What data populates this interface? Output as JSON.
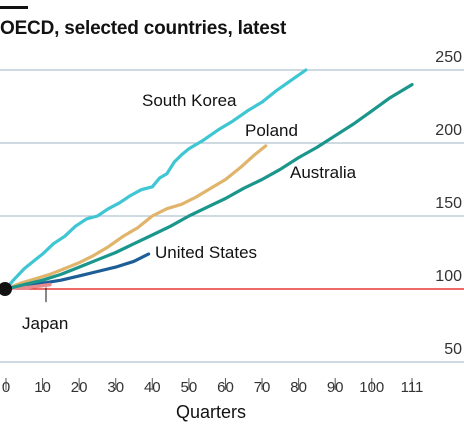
{
  "subtitle": "OECD, selected countries, latest",
  "chart_data": {
    "type": "line",
    "subtitle": "OECD, selected countries, latest",
    "xlabel": "Quarters",
    "ylabel": "",
    "xlim": [
      0,
      113
    ],
    "ylim": [
      45,
      260
    ],
    "x_ticks": [
      0,
      10,
      20,
      30,
      40,
      50,
      60,
      70,
      80,
      90,
      100,
      111
    ],
    "y_ticks": [
      50,
      100,
      150,
      200,
      250
    ],
    "baseline": 100,
    "grid": true,
    "colors": {
      "South Korea": "#3ec6d3",
      "Poland": "#e0b56b",
      "Australia": "#1a968c",
      "United States": "#1d5e96",
      "Japan": "#e88a8f",
      "baseline": "#e3120b",
      "grid": "#9db6c6",
      "origin": "#121212"
    },
    "series": [
      {
        "name": "South Korea",
        "x": [
          0,
          2,
          5,
          8,
          10,
          13,
          16,
          19,
          22,
          25,
          28,
          31,
          34,
          37,
          40,
          42,
          44,
          46,
          48,
          50,
          54,
          58,
          62,
          66,
          70,
          74,
          78,
          82
        ],
        "y": [
          100,
          106,
          114,
          120,
          124,
          131,
          136,
          143,
          148,
          150,
          155,
          159,
          164,
          168,
          170,
          176,
          179,
          187,
          192,
          196,
          202,
          209,
          215,
          222,
          228,
          236,
          243,
          250
        ]
      },
      {
        "name": "Poland",
        "x": [
          0,
          4,
          8,
          12,
          16,
          20,
          24,
          28,
          32,
          36,
          40,
          44,
          48,
          52,
          56,
          60,
          64,
          68,
          71
        ],
        "y": [
          100,
          104,
          107,
          110,
          114,
          118,
          123,
          129,
          136,
          142,
          150,
          155,
          158,
          163,
          169,
          175,
          183,
          192,
          198
        ]
      },
      {
        "name": "Australia",
        "x": [
          0,
          5,
          10,
          15,
          20,
          25,
          30,
          35,
          40,
          45,
          50,
          55,
          60,
          65,
          70,
          75,
          80,
          85,
          90,
          95,
          100,
          105,
          111
        ],
        "y": [
          100,
          103,
          106,
          110,
          115,
          120,
          125,
          131,
          137,
          143,
          150,
          156,
          162,
          169,
          175,
          182,
          190,
          197,
          205,
          213,
          222,
          231,
          240
        ]
      },
      {
        "name": "United States",
        "x": [
          0,
          5,
          10,
          15,
          20,
          25,
          30,
          35,
          39
        ],
        "y": [
          100,
          102,
          104,
          106,
          109,
          112,
          115,
          119,
          124
        ]
      },
      {
        "name": "Japan",
        "x": [
          0,
          3,
          6,
          9,
          12
        ],
        "y": [
          100,
          101,
          101,
          102,
          103
        ]
      }
    ],
    "annotations": [
      "South Korea",
      "Poland",
      "Australia",
      "United States",
      "Japan"
    ]
  }
}
